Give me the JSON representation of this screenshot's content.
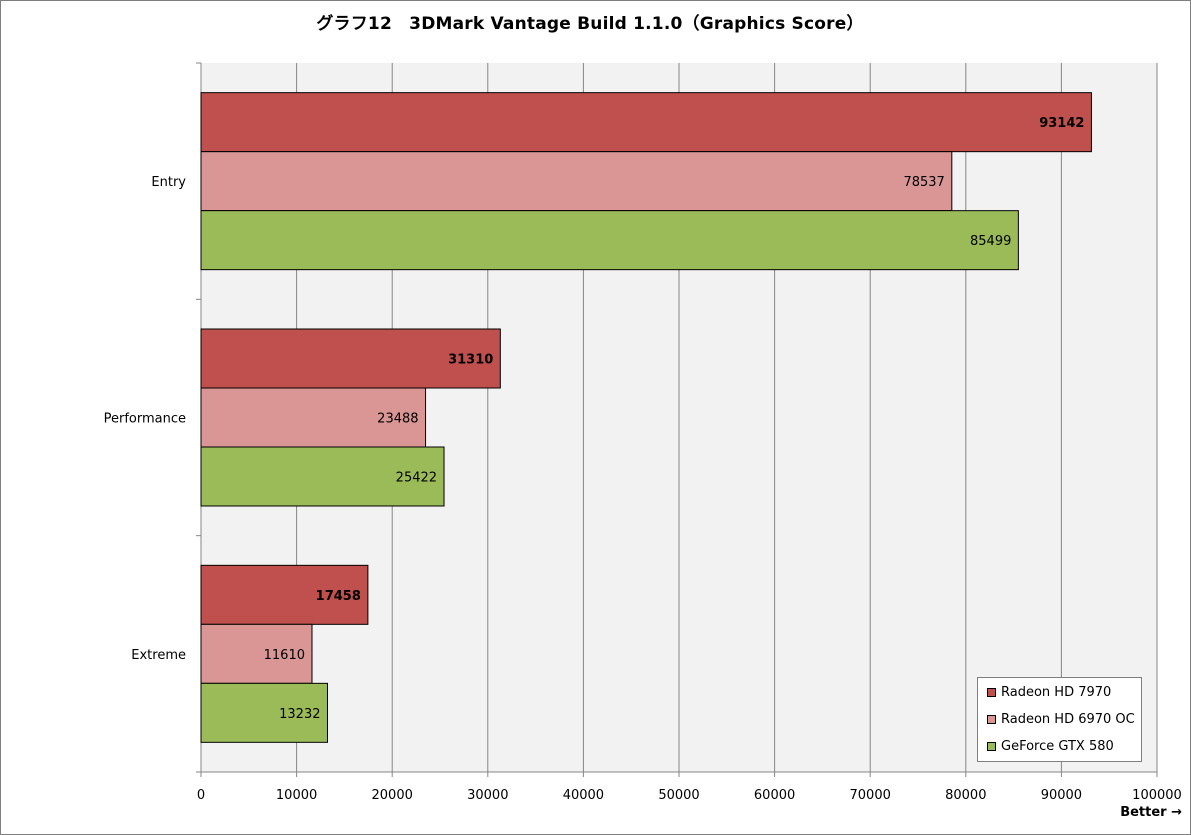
{
  "chart_data": {
    "type": "bar",
    "orientation": "horizontal",
    "title": "グラフ12　3DMark Vantage Build 1.1.0（Graphics Score）",
    "categories": [
      "Entry",
      "Performance",
      "Extreme"
    ],
    "series": [
      {
        "name": "Radeon HD 7970",
        "color": "#c0504d",
        "values": [
          93142,
          31310,
          17458
        ],
        "label_bold": true
      },
      {
        "name": "Radeon HD 6970 OC",
        "color": "#d99694",
        "values": [
          78537,
          23488,
          11610
        ],
        "label_bold": false
      },
      {
        "name": "GeForce GTX 580",
        "color": "#9bbb59",
        "values": [
          85499,
          25422,
          13232
        ],
        "label_bold": false
      }
    ],
    "xlim": [
      0,
      100000
    ],
    "xticks": [
      0,
      10000,
      20000,
      30000,
      40000,
      50000,
      60000,
      70000,
      80000,
      90000,
      100000
    ],
    "grid": true,
    "legend_position": "bottom-right",
    "x_annotation": "Better →",
    "plot_background": "#f2f2f2"
  }
}
